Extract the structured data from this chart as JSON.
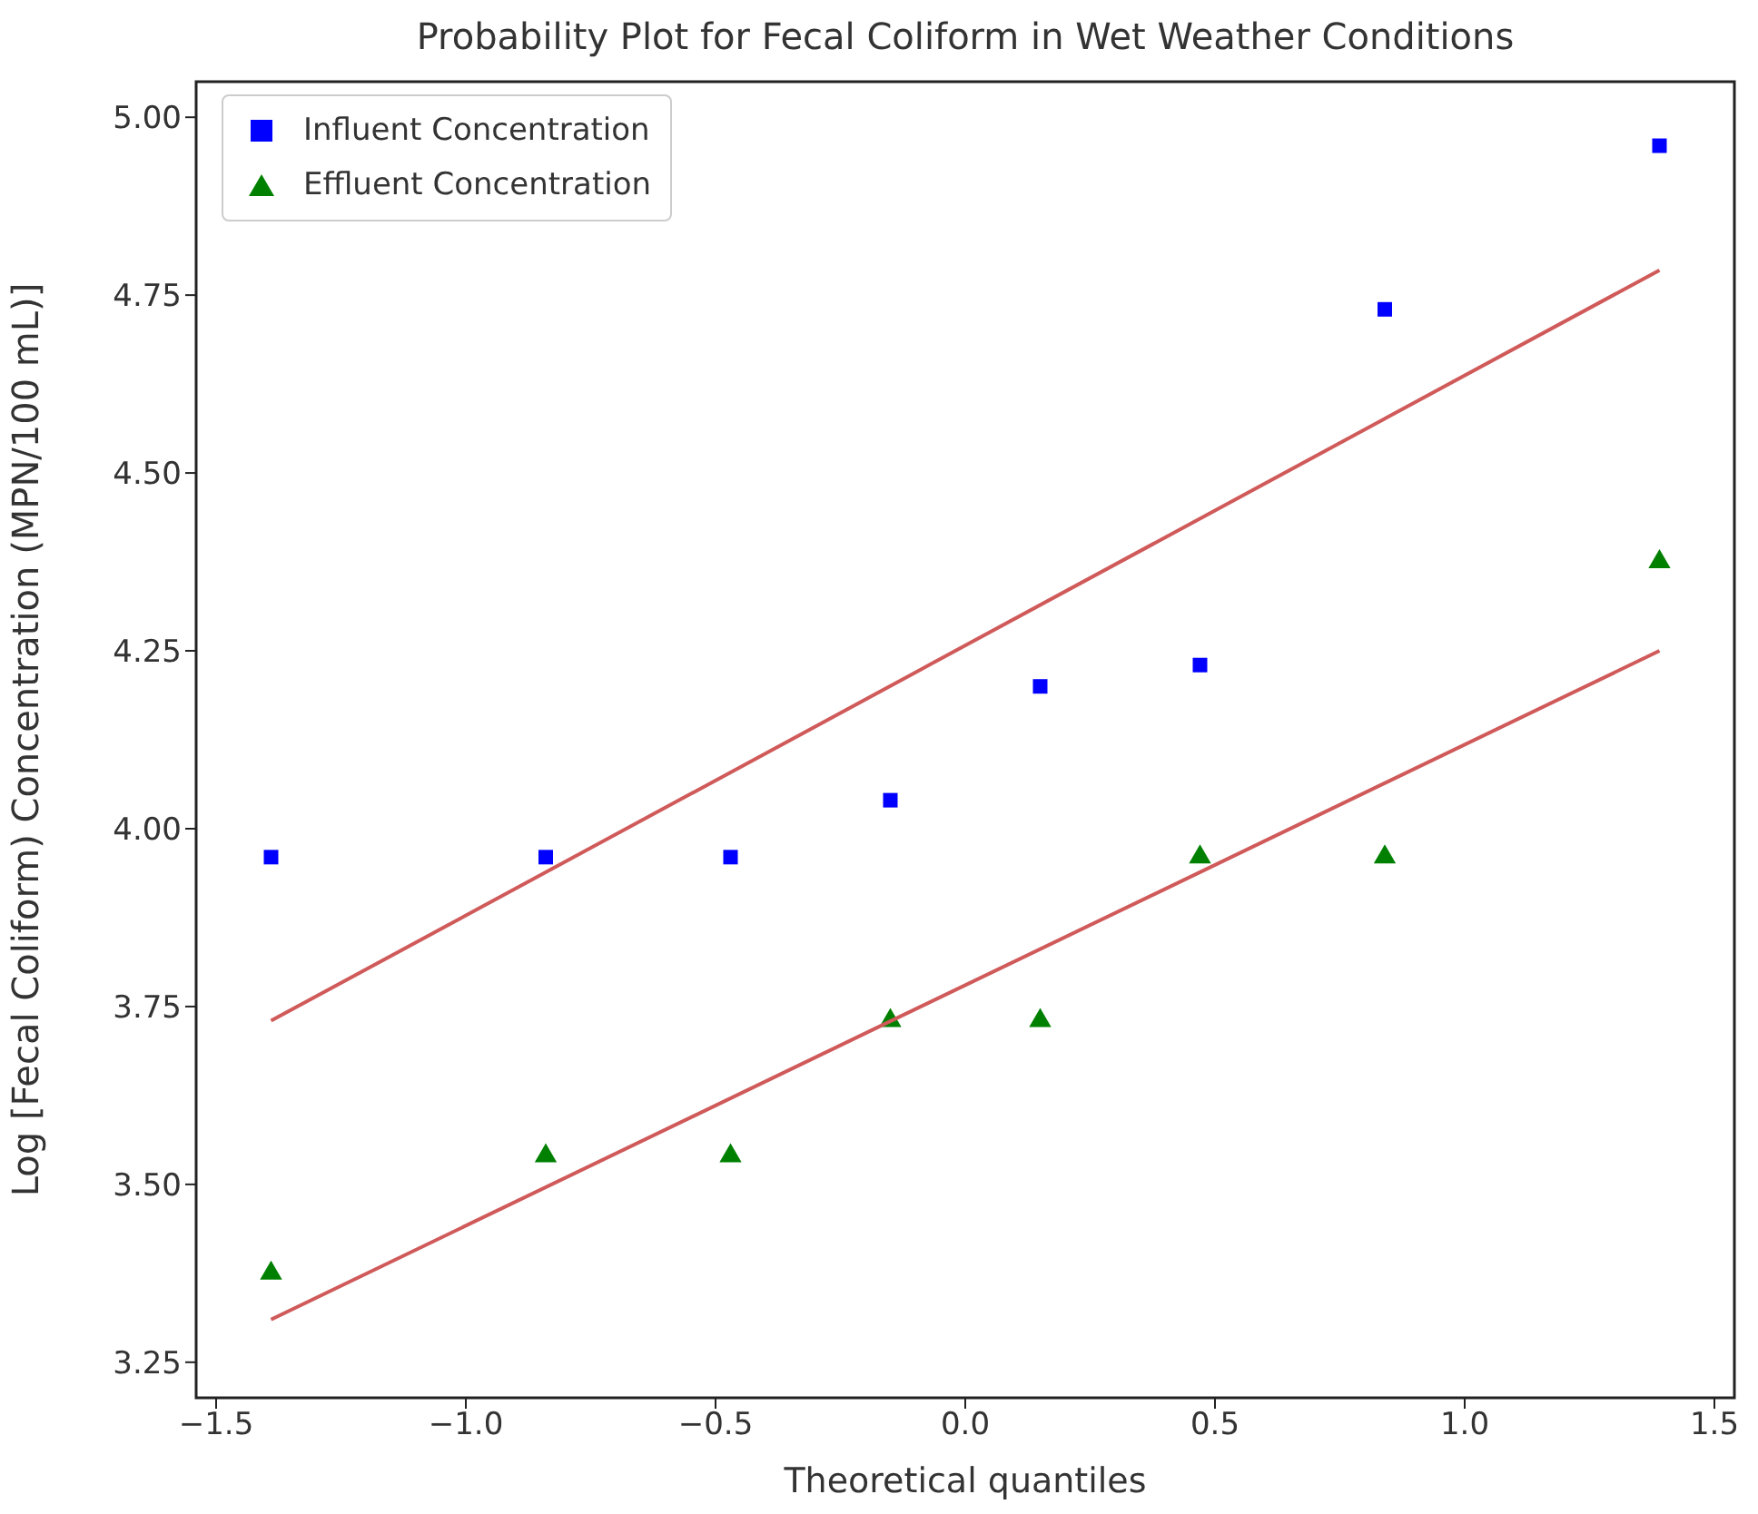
{
  "chart_data": {
    "type": "scatter",
    "title": "Probability Plot for Fecal Coliform in Wet Weather Conditions",
    "xlabel": "Theoretical quantiles",
    "ylabel": "Log [Fecal Coliform) Concentration (MPN/100 mL)]",
    "xlim": [
      -1.54,
      1.54
    ],
    "ylim": [
      3.2,
      5.05
    ],
    "xticks": [
      {
        "value": -1.5,
        "label": "−1.5"
      },
      {
        "value": -1,
        "label": "−1.0"
      },
      {
        "value": -0.5,
        "label": "−0.5"
      },
      {
        "value": 0,
        "label": "0.0"
      },
      {
        "value": 0.5,
        "label": "0.5"
      },
      {
        "value": 1,
        "label": "1.0"
      },
      {
        "value": 1.5,
        "label": "1.5"
      }
    ],
    "yticks": [
      {
        "value": 3.25,
        "label": "3.25"
      },
      {
        "value": 3.5,
        "label": "3.50"
      },
      {
        "value": 3.75,
        "label": "3.75"
      },
      {
        "value": 4,
        "label": "4.00"
      },
      {
        "value": 4.25,
        "label": "4.25"
      },
      {
        "value": 4.5,
        "label": "4.50"
      },
      {
        "value": 4.75,
        "label": "4.75"
      },
      {
        "value": 5,
        "label": "5.00"
      }
    ],
    "grid": false,
    "legend": "top left",
    "series": [
      {
        "name": "Influent Concentration",
        "color": "#0000ff",
        "marker": "square",
        "x": [
          -1.39,
          -0.84,
          -0.47,
          -0.15,
          0.15,
          0.47,
          0.84,
          1.39
        ],
        "values": [
          3.96,
          3.96,
          3.96,
          4.04,
          4.2,
          4.23,
          4.73,
          4.96
        ]
      },
      {
        "name": "Effluent Concentration",
        "color": "#008000",
        "marker": "triangle",
        "x": [
          -1.39,
          -0.84,
          -0.47,
          -0.15,
          0.15,
          0.47,
          0.84,
          1.39
        ],
        "values": [
          3.375,
          3.54,
          3.54,
          3.73,
          3.73,
          3.96,
          3.96,
          4.375
        ]
      },
      {
        "type": "line",
        "color": "#d05a5a",
        "x": [
          -1.39,
          1.39
        ],
        "values": [
          3.73,
          4.785
        ]
      },
      {
        "type": "line",
        "color": "#d05a5a",
        "x": [
          -1.39,
          1.39
        ],
        "values": [
          3.31,
          4.25
        ]
      }
    ]
  }
}
